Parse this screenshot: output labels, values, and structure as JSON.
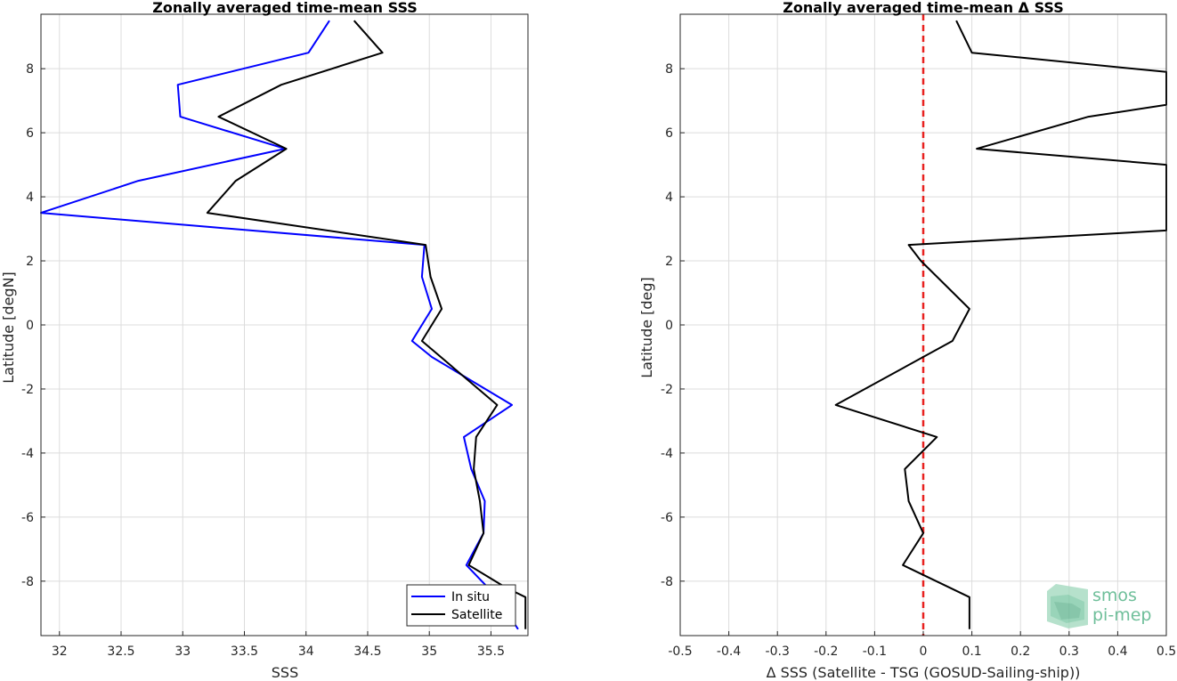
{
  "chart_data": [
    {
      "type": "line",
      "title": "Zonally averaged time-mean SSS",
      "xlabel": "SSS",
      "ylabel": "Latitude [degN]",
      "xlim": [
        31.85,
        35.8
      ],
      "ylim": [
        -9.7,
        9.7
      ],
      "xticks": [
        32,
        32.5,
        33,
        33.5,
        34,
        34.5,
        35,
        35.5
      ],
      "yticks": [
        -8,
        -6,
        -4,
        -2,
        0,
        2,
        4,
        6,
        8
      ],
      "grid": true,
      "legend_position": "bottom-right",
      "series": [
        {
          "name": "In situ",
          "color": "#0000ff",
          "points": [
            [
              34.19,
              9.5
            ],
            [
              34.02,
              8.5
            ],
            [
              32.96,
              7.5
            ],
            [
              32.98,
              6.5
            ],
            [
              33.83,
              5.5
            ],
            [
              32.64,
              4.5
            ],
            [
              31.85,
              3.5
            ],
            [
              34.96,
              2.5
            ],
            [
              34.94,
              1.5
            ],
            [
              35.02,
              0.5
            ],
            [
              34.86,
              -0.5
            ],
            [
              35.02,
              -1.0
            ],
            [
              35.67,
              -2.5
            ],
            [
              35.28,
              -3.5
            ],
            [
              35.34,
              -4.5
            ],
            [
              35.45,
              -5.5
            ],
            [
              35.44,
              -6.5
            ],
            [
              35.3,
              -7.5
            ],
            [
              35.55,
              -8.5
            ],
            [
              35.72,
              -9.5
            ]
          ]
        },
        {
          "name": "Satellite",
          "color": "#000000",
          "points": [
            [
              34.39,
              9.5
            ],
            [
              34.62,
              8.5
            ],
            [
              33.8,
              7.5
            ],
            [
              33.29,
              6.5
            ],
            [
              33.84,
              5.5
            ],
            [
              33.43,
              4.5
            ],
            [
              33.2,
              3.5
            ],
            [
              34.97,
              2.5
            ],
            [
              35.01,
              1.5
            ],
            [
              35.1,
              0.5
            ],
            [
              34.94,
              -0.5
            ],
            [
              35.55,
              -2.5
            ],
            [
              35.38,
              -3.5
            ],
            [
              35.36,
              -4.5
            ],
            [
              35.41,
              -5.5
            ],
            [
              35.44,
              -6.5
            ],
            [
              35.32,
              -7.5
            ],
            [
              35.62,
              -8.2
            ],
            [
              35.78,
              -8.5
            ],
            [
              35.78,
              -9.5
            ]
          ]
        }
      ]
    },
    {
      "type": "line",
      "title": "Zonally averaged time-mean Δ SSS",
      "xlabel": "Δ SSS (Satellite - TSG (GOSUD-Sailing-ship))",
      "ylabel": "Latitude [deg]",
      "xlim": [
        -0.5,
        0.5
      ],
      "ylim": [
        -9.7,
        9.7
      ],
      "xticks": [
        -0.5,
        -0.4,
        -0.3,
        -0.2,
        -0.1,
        0,
        0.1,
        0.2,
        0.3,
        0.4,
        0.5
      ],
      "yticks": [
        -8,
        -6,
        -4,
        -2,
        0,
        2,
        4,
        6,
        8
      ],
      "grid": true,
      "zero_line_color": "#e8211f",
      "series": [
        {
          "color": "#000000",
          "points": [
            [
              0.068,
              9.5
            ],
            [
              0.1,
              8.5
            ],
            [
              0.5,
              7.9
            ],
            [
              0.5,
              6.87
            ],
            [
              0.34,
              6.5
            ],
            [
              0.11,
              5.5
            ],
            [
              0.5,
              5.0
            ],
            [
              0.5,
              2.95
            ],
            [
              -0.03,
              2.5
            ],
            [
              -0.005,
              2.0
            ],
            [
              0.095,
              0.5
            ],
            [
              0.06,
              -0.5
            ],
            [
              -0.18,
              -2.5
            ],
            [
              0.028,
              -3.5
            ],
            [
              -0.038,
              -4.5
            ],
            [
              -0.03,
              -5.5
            ],
            [
              0.0,
              -6.5
            ],
            [
              -0.042,
              -7.5
            ],
            [
              0.095,
              -8.5
            ],
            [
              0.095,
              -9.5
            ]
          ]
        }
      ]
    }
  ],
  "legend": {
    "in_situ": "In situ",
    "satellite": "Satellite"
  },
  "logo": {
    "line1": "smos",
    "line2": "pi-mep",
    "color": "#6fbf9a"
  }
}
